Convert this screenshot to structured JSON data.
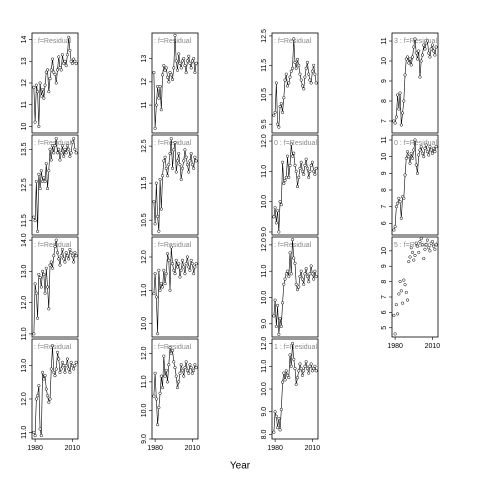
{
  "chart_data": {
    "type": "small-multiples",
    "xlabel": "Year",
    "x": [
      1979,
      1980,
      1981,
      1982,
      1983,
      1984,
      1985,
      1986,
      1987,
      1988,
      1989,
      1990,
      1991,
      1992,
      1993,
      1994,
      1995,
      1996,
      1997,
      1998,
      1999,
      2000,
      2001,
      2002,
      2003,
      2004,
      2005,
      2006,
      2007,
      2008,
      2009,
      2010,
      2011,
      2012,
      2013
    ],
    "xlim": [
      1977.5,
      2014.5
    ],
    "xticks": [
      1980,
      2010
    ],
    "panels": [
      {
        "type": "line",
        "label": ": f=Residual",
        "ylim": [
          9.7,
          14.3
        ],
        "yticks": [
          10,
          11,
          12,
          13,
          14
        ],
        "values": [
          11.8,
          10.2,
          11.9,
          11.6,
          10.0,
          12.0,
          11.4,
          11.7,
          11.3,
          11.9,
          12.5,
          12.6,
          11.6,
          12.2,
          12.6,
          13.1,
          12.5,
          12.4,
          12.0,
          12.6,
          13.2,
          12.7,
          12.6,
          13.3,
          12.9,
          13.0,
          12.8,
          13.3,
          14.1,
          13.5,
          13.0,
          12.9,
          13.1,
          13.0,
          12.9
        ]
      },
      {
        "type": "line",
        "label": ": f=Residual",
        "ylim": [
          9.8,
          14.1
        ],
        "yticks": [
          11,
          12,
          13
        ],
        "values": [
          12.4,
          10.0,
          11.0,
          11.8,
          11.3,
          11.8,
          10.8,
          12.3,
          12.7,
          12.5,
          12.6,
          12.2,
          12.0,
          12.4,
          12.3,
          12.1,
          12.6,
          14.0,
          12.9,
          12.5,
          13.2,
          12.8,
          12.6,
          12.9,
          13.0,
          12.7,
          12.4,
          12.9,
          13.1,
          12.8,
          12.6,
          12.9,
          13.0,
          12.4,
          12.8
        ]
      },
      {
        "type": "line",
        "label": ": f=Residual",
        "ylim": [
          9.2,
          12.6
        ],
        "yticks": [
          9.5,
          10.5,
          11.5,
          12.5
        ],
        "values": [
          9.8,
          9.9,
          10.9,
          9.5,
          9.4,
          10.1,
          10.2,
          9.9,
          10.4,
          11.0,
          11.2,
          10.8,
          10.9,
          11.1,
          11.3,
          11.4,
          12.4,
          11.6,
          11.4,
          11.7,
          11.5,
          11.2,
          11.0,
          10.8,
          10.7,
          11.1,
          11.4,
          11.6,
          11.2,
          11.0,
          10.9,
          11.3,
          11.5,
          11.2,
          10.9
        ]
      },
      {
        "type": "line",
        "label": "3 : f=Residual",
        "ylim": [
          6.4,
          11.4
        ],
        "yticks": [
          7,
          8,
          9,
          10,
          11
        ],
        "values": [
          7.0,
          6.9,
          7.2,
          8.3,
          7.6,
          8.4,
          6.8,
          7.4,
          8.0,
          9.3,
          10.1,
          10.2,
          9.9,
          10.1,
          9.8,
          10.2,
          10.7,
          11.1,
          10.4,
          10.1,
          10.5,
          9.2,
          10.0,
          10.3,
          10.8,
          10.6,
          10.9,
          11.0,
          10.4,
          10.2,
          10.6,
          10.8,
          10.5,
          10.3,
          10.7
        ]
      },
      {
        "type": "line",
        "label": ": f=Residual",
        "ylim": [
          11.1,
          13.9
        ],
        "yticks": [
          11.5,
          12.5,
          13.5
        ],
        "values": [
          11.6,
          11.5,
          12.6,
          11.2,
          12.8,
          12.4,
          12.9,
          12.6,
          12.7,
          12.6,
          13.1,
          12.4,
          12.9,
          13.5,
          13.2,
          13.6,
          13.4,
          13.6,
          13.8,
          13.4,
          13.5,
          13.2,
          13.4,
          13.6,
          13.3,
          13.5,
          13.4,
          13.6,
          13.5,
          13.3,
          13.4,
          13.7,
          13.8,
          13.5,
          13.4
        ]
      },
      {
        "type": "line",
        "label": ": f=Residual",
        "ylim": [
          10.1,
          12.8
        ],
        "yticks": [
          10.5,
          11.5,
          12.5
        ],
        "values": [
          11.0,
          10.4,
          11.5,
          10.6,
          10.2,
          11.6,
          10.8,
          11.7,
          12.1,
          12.2,
          11.9,
          11.7,
          12.0,
          12.3,
          12.7,
          11.9,
          12.4,
          12.6,
          11.8,
          12.1,
          12.3,
          12.0,
          11.6,
          11.9,
          12.1,
          12.4,
          12.2,
          12.0,
          11.8,
          12.1,
          12.3,
          12.0,
          11.9,
          12.2,
          12.1
        ]
      },
      {
        "type": "line",
        "label": "0 : f=Residual",
        "ylim": [
          8.9,
          12.2
        ],
        "yticks": [
          {
            "value": 9,
            "label": "9.0"
          },
          {
            "value": 10,
            "label": "10.0"
          },
          {
            "value": 11,
            "label": "11.0"
          },
          {
            "value": 12,
            "label": "12.0"
          }
        ],
        "values": [
          9.5,
          9.8,
          9.3,
          9.7,
          9.0,
          10.0,
          9.9,
          11.3,
          10.6,
          10.7,
          10.8,
          11.5,
          10.8,
          11.2,
          11.9,
          11.5,
          11.6,
          11.2,
          11.0,
          10.5,
          10.8,
          11.1,
          11.3,
          11.0,
          10.9,
          11.2,
          11.4,
          11.1,
          10.8,
          11.0,
          11.2,
          11.3,
          11.0,
          10.9,
          11.1
        ]
      },
      {
        "type": "line",
        "label": "0 : f=Residual",
        "ylim": [
          5.3,
          11.3
        ],
        "yticks": [
          6,
          7,
          8,
          9,
          10,
          11
        ],
        "values": [
          5.6,
          5.8,
          7.0,
          7.2,
          7.5,
          7.3,
          6.3,
          7.6,
          7.5,
          8.9,
          9.9,
          10.3,
          10.0,
          9.6,
          10.2,
          9.9,
          10.4,
          11.0,
          9.5,
          9.0,
          10.1,
          10.4,
          10.6,
          10.2,
          10.0,
          10.5,
          10.7,
          10.3,
          10.1,
          10.6,
          10.4,
          10.2,
          10.5,
          10.3,
          10.6
        ]
      },
      {
        "type": "line",
        "label": ": f=Residual",
        "ylim": [
          10.9,
          14.1
        ],
        "yticks": [
          {
            "value": 11,
            "label": "11.0"
          },
          {
            "value": 12,
            "label": "12.0"
          },
          {
            "value": 13,
            "label": "13.0"
          },
          {
            "value": 14,
            "label": "14.0"
          }
        ],
        "values": [
          11.0,
          12.6,
          12.3,
          11.5,
          12.9,
          12.8,
          12.5,
          13.0,
          12.9,
          12.3,
          13.1,
          12.5,
          11.8,
          13.2,
          13.3,
          13.1,
          13.5,
          13.8,
          14.0,
          13.6,
          13.4,
          13.2,
          13.5,
          13.7,
          13.4,
          13.3,
          13.6,
          13.5,
          13.4,
          13.7,
          13.6,
          13.5,
          13.3,
          13.6,
          13.5
        ]
      },
      {
        "type": "line",
        "label": ": f=Residual",
        "ylim": [
          9.6,
          12.6
        ],
        "yticks": [
          {
            "value": 10,
            "label": "10.0"
          },
          {
            "value": 11,
            "label": "11.0"
          },
          {
            "value": 12,
            "label": "12.0"
          }
        ],
        "values": [
          10.9,
          11.5,
          10.8,
          9.7,
          11.6,
          11.0,
          11.2,
          11.1,
          11.6,
          11.2,
          11.5,
          12.1,
          11.9,
          11.0,
          12.3,
          11.8,
          11.6,
          11.5,
          11.9,
          11.7,
          11.8,
          11.4,
          11.6,
          11.9,
          11.7,
          11.5,
          11.8,
          12.0,
          11.7,
          11.6,
          11.9,
          11.8,
          11.5,
          11.7,
          11.8
        ]
      },
      {
        "type": "line",
        "label": ": f=Residual",
        "ylim": [
          8.5,
          12.3
        ],
        "yticks": [
          {
            "value": 9,
            "label": "9.0"
          },
          {
            "value": 10,
            "label": "10.0"
          },
          {
            "value": 11,
            "label": "11.0"
          },
          {
            "value": 12,
            "label": "12.0"
          }
        ],
        "values": [
          9.3,
          9.9,
          8.9,
          9.7,
          8.6,
          9.2,
          8.9,
          9.8,
          10.5,
          10.7,
          10.9,
          11.0,
          10.8,
          11.7,
          10.9,
          12.2,
          11.5,
          11.3,
          10.5,
          10.3,
          10.4,
          10.8,
          11.0,
          10.7,
          10.5,
          10.9,
          11.1,
          10.8,
          10.6,
          10.9,
          11.2,
          10.9,
          10.7,
          11.0,
          10.8
        ]
      },
      {
        "type": "scatter",
        "label": "5 : f=Residual",
        "ylim": [
          4.4,
          10.9
        ],
        "yticks": [
          5,
          6,
          7,
          8,
          9,
          10
        ],
        "values": [
          5.8,
          4.6,
          6.5,
          5.9,
          7.2,
          8.0,
          7.4,
          6.6,
          8.1,
          7.8,
          7.3,
          6.8,
          9.3,
          9.6,
          10.2,
          9.9,
          9.4,
          9.7,
          10.5,
          10.3,
          9.9,
          10.6,
          10.8,
          10.4,
          9.5,
          10.1,
          10.4,
          10.7,
          10.2,
          10.0,
          10.5,
          10.6,
          10.3,
          10.1,
          10.4
        ]
      },
      {
        "type": "line",
        "label": ": f=Residual",
        "ylim": [
          10.8,
          13.8
        ],
        "yticks": [
          {
            "value": 11,
            "label": "11.0"
          },
          {
            "value": 12,
            "label": "12.0"
          },
          {
            "value": 13,
            "label": "13.0"
          }
        ],
        "values": [
          11.0,
          10.9,
          12.0,
          12.1,
          12.4,
          11.1,
          10.9,
          12.8,
          12.6,
          12.7,
          12.3,
          12.1,
          11.9,
          12.0,
          12.9,
          13.6,
          12.8,
          12.7,
          12.9,
          13.4,
          13.2,
          12.8,
          12.9,
          13.1,
          13.0,
          12.8,
          13.0,
          13.2,
          12.9,
          12.8,
          13.1,
          13.0,
          12.9,
          13.0,
          13.1
        ]
      },
      {
        "type": "line",
        "label": ": f=Residual",
        "ylim": [
          9.0,
          12.5
        ],
        "yticks": [
          {
            "value": 9,
            "label": "9.0"
          },
          {
            "value": 10,
            "label": "10.0"
          },
          {
            "value": 11,
            "label": "11.0"
          },
          {
            "value": 12,
            "label": "12.0"
          }
        ],
        "values": [
          10.5,
          11.3,
          10.4,
          9.5,
          10.1,
          10.6,
          11.2,
          10.8,
          11.9,
          11.2,
          11.4,
          11.0,
          11.6,
          12.2,
          12.0,
          12.1,
          11.7,
          11.5,
          11.2,
          10.8,
          11.0,
          11.3,
          11.6,
          11.4,
          11.2,
          11.5,
          11.7,
          11.4,
          11.3,
          11.6,
          11.5,
          11.3,
          11.4,
          11.6,
          11.5
        ]
      },
      {
        "type": "line",
        "label": "1 : f=Residual",
        "ylim": [
          7.8,
          12.2
        ],
        "yticks": [
          {
            "value": 8,
            "label": "8.0"
          },
          {
            "value": 9,
            "label": "9.0"
          },
          {
            "value": 10,
            "label": "10.0"
          },
          {
            "value": 11,
            "label": "11.0"
          },
          {
            "value": 12,
            "label": "12.0"
          }
        ],
        "values": [
          8.1,
          9.0,
          8.8,
          8.3,
          8.7,
          8.2,
          9.1,
          10.3,
          10.7,
          10.4,
          10.8,
          10.6,
          10.5,
          11.5,
          11.0,
          12.0,
          11.3,
          10.9,
          10.2,
          10.5,
          10.8,
          11.1,
          10.9,
          10.6,
          10.8,
          11.0,
          11.2,
          10.9,
          10.7,
          11.0,
          11.1,
          10.8,
          10.9,
          11.0,
          10.8
        ]
      }
    ]
  }
}
